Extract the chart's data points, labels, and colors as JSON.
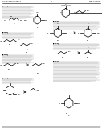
{
  "background_color": "#ffffff",
  "text_color": "#000000",
  "structure_color": "#000000",
  "header_text": "US 2011/0160248 A1",
  "header_right": "May 11, 2011",
  "page_number": "19",
  "gray_text": "#666666",
  "mid_gray": "#999999"
}
